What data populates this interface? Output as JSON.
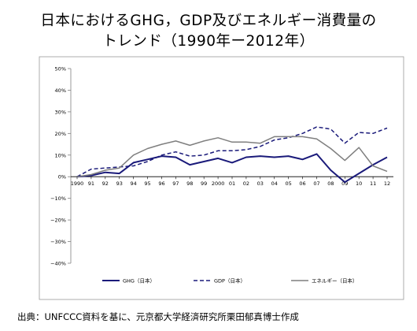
{
  "title": {
    "line1": "日本におけるGHG，GDP及びエネルギー消費量の",
    "line2": "トレンド（1990年ー2012年）"
  },
  "source": "出典：UNFCCC資料を基に、元京都大学経済研究所栗田郁真博士作成",
  "colors": {
    "ghg": "#1a1a7a",
    "gdp": "#1a1a7a",
    "energy": "#7f7f7f",
    "zero_line": "#000000",
    "frame": "#999999"
  },
  "chart_data": {
    "type": "line",
    "categories": [
      "1990",
      "91",
      "92",
      "93",
      "94",
      "95",
      "96",
      "97",
      "98",
      "99",
      "2000",
      "01",
      "02",
      "03",
      "04",
      "05",
      "06",
      "07",
      "08",
      "09",
      "10",
      "11",
      "12"
    ],
    "y_ticks": [
      "50%",
      "40%",
      "30%",
      "20%",
      "10%",
      "0%",
      "−10%",
      "−20%",
      "−30%",
      "−40%"
    ],
    "ylim": [
      -40,
      50
    ],
    "grid": false,
    "legend_position": "bottom",
    "series": [
      {
        "name": "GHG（日本）",
        "style": "solid",
        "values": [
          0,
          0.5,
          2,
          1.5,
          6.5,
          8,
          9.5,
          9,
          5.5,
          7,
          8.5,
          6.5,
          9,
          9.5,
          9,
          9.5,
          8,
          10.5,
          3,
          -2.5,
          1.5,
          5.5,
          9
        ]
      },
      {
        "name": "GDP（日本）",
        "style": "dashed",
        "values": [
          0,
          3.5,
          4,
          4.5,
          5,
          7,
          10,
          11.5,
          9.5,
          10,
          12,
          12,
          12.5,
          14,
          17,
          18,
          20,
          23,
          22,
          15.5,
          20.5,
          20,
          22.5
        ]
      },
      {
        "name": "エネルギー（日本）",
        "style": "solid",
        "values": [
          0,
          1,
          3,
          4,
          10,
          13,
          15,
          16.5,
          14.5,
          16.5,
          18,
          16,
          16,
          15.5,
          18.5,
          18.5,
          18.5,
          17.5,
          13,
          7.5,
          13.5,
          5,
          2.5
        ]
      }
    ]
  }
}
